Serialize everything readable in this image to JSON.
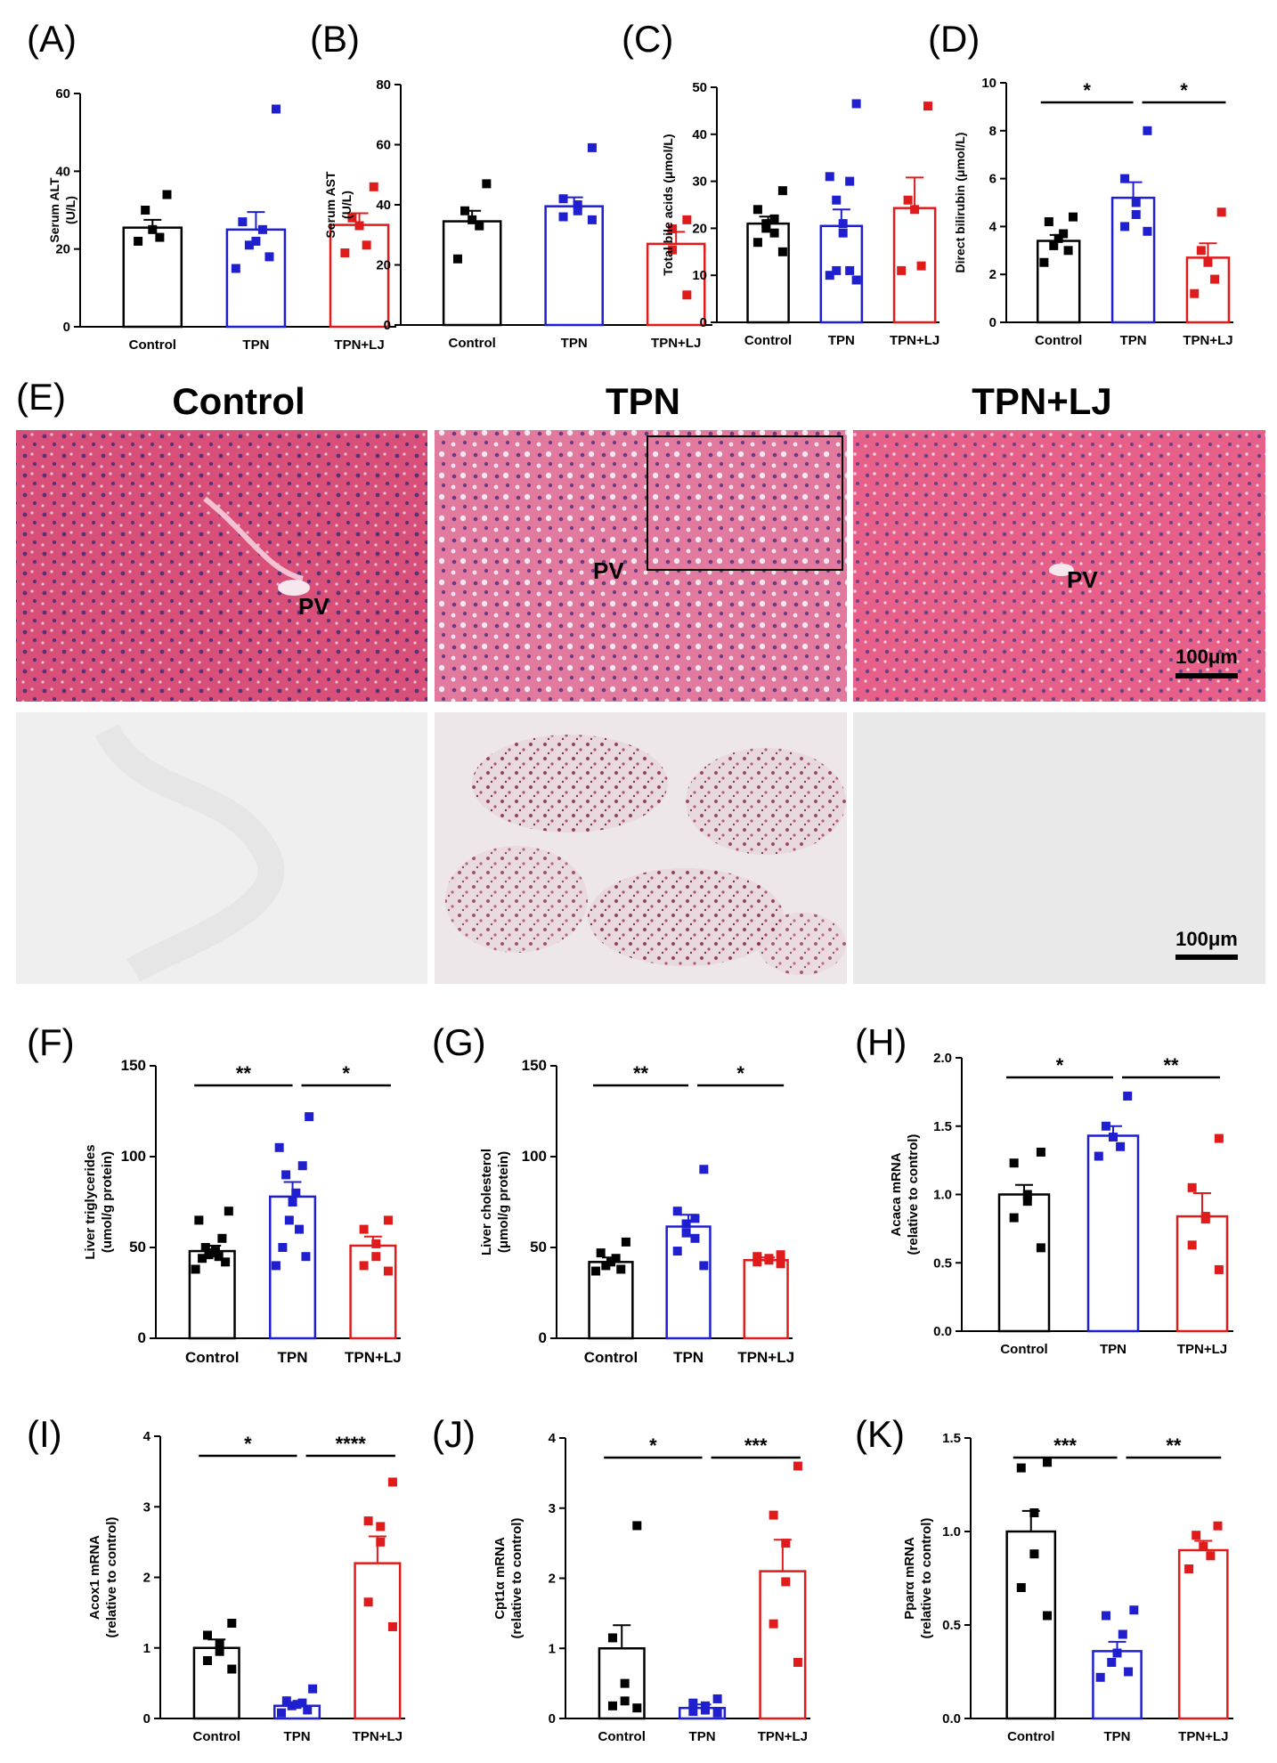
{
  "panel_letters": {
    "A": "(A)",
    "B": "(B)",
    "C": "(C)",
    "D": "(D)",
    "E": "(E)",
    "F": "(F)",
    "G": "(G)",
    "H": "(H)",
    "I": "(I)",
    "J": "(J)",
    "K": "(K)"
  },
  "histology": {
    "titles": [
      "Control",
      "TPN",
      "TPN+LJ"
    ],
    "pv_label": "PV",
    "scale_bar_label": "100μm"
  },
  "colors": {
    "control": "#000000",
    "tpn": "#1f1fd0",
    "tpn_lj": "#e01b1b"
  },
  "chart_data": [
    {
      "id": "A",
      "type": "bar",
      "categories": [
        "Control",
        "TPN",
        "TPN+LJ"
      ],
      "values": [
        25.5,
        25,
        26.2
      ],
      "errors": [
        2,
        4.5,
        3
      ],
      "points": [
        [
          34,
          30,
          25,
          23,
          22
        ],
        [
          56,
          27,
          25,
          22,
          21,
          18,
          15
        ],
        [
          36,
          28,
          26,
          21,
          19
        ]
      ],
      "ylabel_lines": [
        "Serum ALT",
        "(U/L)"
      ],
      "ylim": [
        0,
        60
      ],
      "yticks": [
        0,
        20,
        40,
        60
      ],
      "significance": []
    },
    {
      "id": "B",
      "type": "bar",
      "categories": [
        "Control",
        "TPN",
        "TPN+LJ"
      ],
      "values": [
        34.5,
        39.5,
        27
      ],
      "errors": [
        3.5,
        3,
        4
      ],
      "points": [
        [
          47,
          38,
          35,
          33,
          22
        ],
        [
          59,
          42,
          40,
          38,
          36,
          35
        ],
        [
          35,
          32,
          25,
          10
        ]
      ],
      "ylabel_lines": [
        "Serum AST",
        "(U/L)"
      ],
      "ylim": [
        0,
        80
      ],
      "yticks": [
        0,
        20,
        40,
        60,
        80
      ],
      "significance": []
    },
    {
      "id": "C",
      "type": "bar",
      "categories": [
        "Control",
        "TPN",
        "TPN+LJ"
      ],
      "values": [
        21,
        20.5,
        24.3
      ],
      "errors": [
        1.5,
        3.5,
        6.5
      ],
      "points": [
        [
          28,
          24,
          22,
          21,
          20,
          19,
          17,
          15
        ],
        [
          46.5,
          31,
          30,
          26,
          21,
          19,
          11,
          11,
          10,
          9
        ],
        [
          46,
          26,
          24,
          12,
          11
        ]
      ],
      "ylabel_lines": [
        "Total bile acids (μmol/L)"
      ],
      "ylim": [
        0,
        50
      ],
      "yticks": [
        0,
        10,
        20,
        30,
        40,
        50
      ],
      "significance": []
    },
    {
      "id": "D",
      "type": "bar",
      "categories": [
        "Control",
        "TPN",
        "TPN+LJ"
      ],
      "values": [
        3.4,
        5.2,
        2.7
      ],
      "errors": [
        0.25,
        0.65,
        0.6
      ],
      "points": [
        [
          4.4,
          4.2,
          3.7,
          3.5,
          3.2,
          3.0,
          2.5
        ],
        [
          8.0,
          6.0,
          5.0,
          4.5,
          4.0,
          3.8
        ],
        [
          4.6,
          3.0,
          2.5,
          1.8,
          1.2
        ]
      ],
      "ylabel_lines": [
        "Direct bilirubin (μmol/L)"
      ],
      "ylim": [
        0,
        10
      ],
      "yticks": [
        0,
        2,
        4,
        6,
        8,
        10
      ],
      "significance": [
        {
          "from": 0,
          "to": 1,
          "label": "*"
        },
        {
          "from": 1,
          "to": 2,
          "label": "*"
        }
      ]
    },
    {
      "id": "F",
      "type": "bar",
      "categories": [
        "Control",
        "TPN",
        "TPN+LJ"
      ],
      "values": [
        48,
        78,
        51
      ],
      "errors": [
        3,
        8,
        5
      ],
      "points": [
        [
          70,
          65,
          55,
          50,
          48,
          47,
          46,
          45,
          44,
          42,
          38
        ],
        [
          122,
          105,
          95,
          90,
          80,
          75,
          65,
          60,
          50,
          45,
          40
        ],
        [
          65,
          60,
          52,
          45,
          40,
          37
        ]
      ],
      "ylabel_lines": [
        "Liver triglycerides",
        "(umol/g protein)"
      ],
      "ylim": [
        0,
        150
      ],
      "yticks": [
        0,
        50,
        100,
        150
      ],
      "significance": [
        {
          "from": 0,
          "to": 1,
          "label": "**"
        },
        {
          "from": 1,
          "to": 2,
          "label": "*"
        }
      ]
    },
    {
      "id": "G",
      "type": "bar",
      "categories": [
        "Control",
        "TPN",
        "TPN+LJ"
      ],
      "values": [
        42,
        61.5,
        43
      ],
      "errors": [
        2.5,
        6.5,
        1.5
      ],
      "points": [
        [
          53,
          47,
          44,
          42,
          40,
          38,
          37
        ],
        [
          93,
          70,
          66,
          63,
          58,
          55,
          48,
          40
        ],
        [
          46,
          45,
          44,
          43,
          42,
          41
        ]
      ],
      "ylabel_lines": [
        "Liver cholesterol",
        "(μmol/g protein)"
      ],
      "ylim": [
        0,
        150
      ],
      "yticks": [
        0,
        50,
        100,
        150
      ],
      "significance": [
        {
          "from": 0,
          "to": 1,
          "label": "**"
        },
        {
          "from": 1,
          "to": 2,
          "label": "*"
        }
      ]
    },
    {
      "id": "H",
      "type": "bar",
      "categories": [
        "Control",
        "TPN",
        "TPN+LJ"
      ],
      "values": [
        1.0,
        1.43,
        0.84
      ],
      "errors": [
        0.07,
        0.07,
        0.17
      ],
      "points": [
        [
          1.31,
          1.23,
          1.0,
          0.95,
          0.83,
          0.61
        ],
        [
          1.72,
          1.5,
          1.42,
          1.35,
          1.28
        ],
        [
          1.41,
          1.05,
          0.84,
          0.82,
          0.63,
          0.45
        ]
      ],
      "ylabel_lines": [
        "Acaca mRNA",
        "(relative to control)"
      ],
      "ylim": [
        0,
        2.0
      ],
      "yticks": [
        0.0,
        0.5,
        1.0,
        1.5,
        2.0
      ],
      "ytick_decimals": 1,
      "significance": [
        {
          "from": 0,
          "to": 1,
          "label": "*"
        },
        {
          "from": 1,
          "to": 2,
          "label": "**"
        }
      ]
    },
    {
      "id": "I",
      "type": "bar",
      "categories": [
        "Control",
        "TPN",
        "TPN+LJ"
      ],
      "values": [
        1.0,
        0.18,
        2.2
      ],
      "errors": [
        0.12,
        0.05,
        0.38
      ],
      "points": [
        [
          1.35,
          1.18,
          1.05,
          0.95,
          0.82,
          0.7
        ],
        [
          0.42,
          0.25,
          0.22,
          0.2,
          0.18,
          0.12,
          0.08
        ],
        [
          3.35,
          2.8,
          2.72,
          2.5,
          1.65,
          1.3
        ]
      ],
      "ylabel_lines": [
        "Acox1 mRNA",
        "(relative to control)"
      ],
      "ylim": [
        0,
        4
      ],
      "yticks": [
        0,
        1,
        2,
        3,
        4
      ],
      "significance": [
        {
          "from": 0,
          "to": 1,
          "label": "*"
        },
        {
          "from": 1,
          "to": 2,
          "label": "****"
        }
      ]
    },
    {
      "id": "J",
      "type": "bar",
      "categories": [
        "Control",
        "TPN",
        "TPN+LJ"
      ],
      "values": [
        1.0,
        0.15,
        2.1
      ],
      "errors": [
        0.33,
        0.05,
        0.45
      ],
      "points": [
        [
          2.75,
          1.15,
          0.5,
          0.25,
          0.18,
          0.15
        ],
        [
          0.28,
          0.22,
          0.18,
          0.12,
          0.1,
          0.08
        ],
        [
          3.6,
          2.9,
          2.5,
          1.95,
          1.35,
          0.8
        ]
      ],
      "ylabel_lines": [
        "Cpt1α mRNA",
        "(relative to control)"
      ],
      "ylim": [
        0,
        4
      ],
      "yticks": [
        0,
        1,
        2,
        3,
        4
      ],
      "significance": [
        {
          "from": 0,
          "to": 1,
          "label": "*"
        },
        {
          "from": 1,
          "to": 2,
          "label": "***"
        }
      ]
    },
    {
      "id": "K",
      "type": "bar",
      "categories": [
        "Control",
        "TPN",
        "TPN+LJ"
      ],
      "values": [
        1.0,
        0.36,
        0.9
      ],
      "errors": [
        0.11,
        0.05,
        0.05
      ],
      "points": [
        [
          1.37,
          1.34,
          1.1,
          0.88,
          0.7,
          0.55
        ],
        [
          0.58,
          0.55,
          0.45,
          0.35,
          0.3,
          0.25,
          0.22
        ],
        [
          1.03,
          0.98,
          0.92,
          0.87,
          0.8
        ]
      ],
      "ylabel_lines": [
        "Pparα mRNA",
        "(relative to control)"
      ],
      "ylim": [
        0,
        1.5
      ],
      "yticks": [
        0.0,
        0.5,
        1.0,
        1.5
      ],
      "ytick_decimals": 1,
      "significance": [
        {
          "from": 0,
          "to": 1,
          "label": "***"
        },
        {
          "from": 1,
          "to": 2,
          "label": "**"
        }
      ]
    }
  ]
}
